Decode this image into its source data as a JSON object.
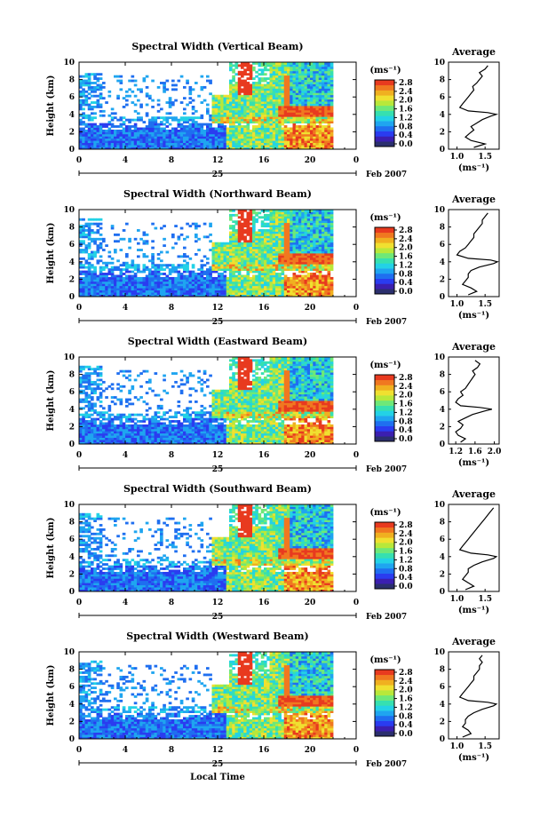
{
  "colors": {
    "colorbar": [
      "#2b2f6e",
      "#3b1fb0",
      "#2a3cf0",
      "#1f6ff0",
      "#1fa5f0",
      "#23d2e6",
      "#36e0b0",
      "#6ee878",
      "#b8e83a",
      "#f0e030",
      "#f0b020",
      "#f07820",
      "#e83a1f"
    ],
    "no_data": "#ffffff",
    "axis": "#000000"
  },
  "chart_data": [
    {
      "type": "heatmap",
      "title": "Spectral Width (Vertical Beam)",
      "ylabel": "Height (km)",
      "x_ticks": [
        "0",
        "4",
        "8",
        "12",
        "16",
        "20",
        "0"
      ],
      "xlim": [
        0,
        24
      ],
      "ylim": [
        0,
        10
      ],
      "y_ticks": [
        "0",
        "2",
        "4",
        "6",
        "8",
        "10"
      ],
      "date_label": "25",
      "month_label": "Feb 2007",
      "colorbar": {
        "unit": "(ms⁻¹)",
        "ticks": [
          "0.0",
          "0.4",
          "0.8",
          "1.2",
          "1.6",
          "2.0",
          "2.4",
          "2.8"
        ]
      },
      "average": {
        "title": "Average",
        "xlabel": "(ms⁻¹)",
        "x_ticks": [
          "1.0",
          "1.5"
        ],
        "xlim": [
          0.85,
          1.75
        ],
        "y_ticks": [
          "0",
          "2",
          "4",
          "6",
          "8",
          "10"
        ],
        "height_km": [
          0.2,
          0.6,
          1.0,
          1.4,
          1.8,
          2.2,
          2.6,
          3.0,
          3.4,
          3.8,
          4.0,
          4.2,
          4.4,
          4.8,
          5.2,
          5.6,
          6.0,
          6.4,
          6.8,
          7.2,
          7.6,
          8.0,
          8.4,
          8.8,
          9.2,
          9.6
        ],
        "values": [
          1.3,
          1.5,
          1.25,
          1.15,
          1.22,
          1.3,
          1.25,
          1.35,
          1.45,
          1.6,
          1.7,
          1.55,
          1.2,
          1.05,
          1.1,
          1.15,
          1.2,
          1.25,
          1.3,
          1.28,
          1.35,
          1.4,
          1.45,
          1.4,
          1.5,
          1.55
        ]
      }
    },
    {
      "type": "heatmap",
      "title": "Spectral Width (Northward Beam)",
      "ylabel": "Height (km)",
      "x_ticks": [
        "0",
        "4",
        "8",
        "12",
        "16",
        "20",
        "0"
      ],
      "xlim": [
        0,
        24
      ],
      "ylim": [
        0,
        10
      ],
      "y_ticks": [
        "0",
        "2",
        "4",
        "6",
        "8",
        "10"
      ],
      "date_label": "25",
      "month_label": "Feb 2007",
      "colorbar": {
        "unit": "(ms⁻¹)",
        "ticks": [
          "0.0",
          "0.4",
          "0.8",
          "1.2",
          "1.6",
          "2.0",
          "2.4",
          "2.8"
        ]
      },
      "average": {
        "title": "Average",
        "xlabel": "(ms⁻¹)",
        "x_ticks": [
          "1.0",
          "1.5"
        ],
        "xlim": [
          0.85,
          1.75
        ],
        "y_ticks": [
          "0",
          "2",
          "4",
          "6",
          "8",
          "10"
        ],
        "height_km": [
          0.2,
          0.6,
          1.0,
          1.4,
          1.8,
          2.2,
          2.6,
          3.0,
          3.4,
          3.8,
          4.0,
          4.2,
          4.4,
          4.8,
          5.2,
          5.6,
          6.0,
          6.4,
          6.8,
          7.2,
          7.6,
          8.0,
          8.4,
          8.8,
          9.2,
          9.6
        ],
        "values": [
          1.2,
          1.35,
          1.25,
          1.1,
          1.15,
          1.2,
          1.2,
          1.25,
          1.4,
          1.65,
          1.72,
          1.6,
          1.2,
          1.0,
          1.05,
          1.15,
          1.2,
          1.25,
          1.3,
          1.3,
          1.35,
          1.4,
          1.45,
          1.45,
          1.5,
          1.55
        ]
      }
    },
    {
      "type": "heatmap",
      "title": "Spectral Width (Eastward Beam)",
      "ylabel": "Height (km)",
      "x_ticks": [
        "0",
        "4",
        "8",
        "12",
        "16",
        "20",
        "0"
      ],
      "xlim": [
        0,
        24
      ],
      "ylim": [
        0,
        10
      ],
      "y_ticks": [
        "0",
        "2",
        "4",
        "6",
        "8",
        "10"
      ],
      "date_label": "25",
      "month_label": "Feb 2007",
      "colorbar": {
        "unit": "(ms⁻¹)",
        "ticks": [
          "0.0",
          "0.4",
          "0.8",
          "1.2",
          "1.6",
          "2.0",
          "2.4",
          "2.8"
        ]
      },
      "average": {
        "title": "Average",
        "xlabel": "(ms⁻¹)",
        "x_ticks": [
          "1.2",
          "1.6",
          "2.0"
        ],
        "xlim": [
          1.05,
          2.1
        ],
        "y_ticks": [
          "0",
          "2",
          "4",
          "6",
          "8",
          "10"
        ],
        "height_km": [
          0.2,
          0.6,
          1.0,
          1.4,
          1.8,
          2.2,
          2.6,
          3.0,
          3.4,
          3.8,
          4.0,
          4.2,
          4.4,
          4.8,
          5.2,
          5.6,
          6.0,
          6.4,
          6.8,
          7.2,
          7.6,
          8.0,
          8.4,
          8.8,
          9.2,
          9.6
        ],
        "values": [
          1.3,
          1.4,
          1.25,
          1.2,
          1.3,
          1.35,
          1.25,
          1.4,
          1.55,
          1.8,
          1.95,
          1.7,
          1.3,
          1.2,
          1.25,
          1.35,
          1.3,
          1.4,
          1.45,
          1.5,
          1.55,
          1.6,
          1.55,
          1.65,
          1.7,
          1.6
        ]
      }
    },
    {
      "type": "heatmap",
      "title": "Spectral Width (Southward Beam)",
      "ylabel": "Height (km)",
      "x_ticks": [
        "0",
        "4",
        "8",
        "12",
        "16",
        "20",
        "0"
      ],
      "xlim": [
        0,
        24
      ],
      "ylim": [
        0,
        10
      ],
      "y_ticks": [
        "0",
        "2",
        "4",
        "6",
        "8",
        "10"
      ],
      "date_label": "25",
      "month_label": "Feb 2007",
      "colorbar": {
        "unit": "(ms⁻¹)",
        "ticks": [
          "0.0",
          "0.4",
          "0.8",
          "1.2",
          "1.6",
          "2.0",
          "2.4",
          "2.8"
        ]
      },
      "average": {
        "title": "Average",
        "xlabel": "(ms⁻¹)",
        "x_ticks": [
          "1.0",
          "1.5"
        ],
        "xlim": [
          0.85,
          1.75
        ],
        "y_ticks": [
          "0",
          "2",
          "4",
          "6",
          "8",
          "10"
        ],
        "height_km": [
          0.2,
          0.6,
          1.0,
          1.4,
          1.8,
          2.2,
          2.6,
          3.0,
          3.4,
          3.8,
          4.0,
          4.2,
          4.4,
          4.8,
          5.2,
          5.6,
          6.0,
          6.4,
          6.8,
          7.2,
          7.6,
          8.0,
          8.4,
          8.8,
          9.2,
          9.6
        ],
        "values": [
          1.15,
          1.3,
          1.2,
          1.1,
          1.15,
          1.2,
          1.2,
          1.3,
          1.45,
          1.65,
          1.7,
          1.55,
          1.25,
          1.05,
          1.1,
          1.15,
          1.2,
          1.25,
          1.3,
          1.35,
          1.4,
          1.45,
          1.5,
          1.55,
          1.6,
          1.65
        ]
      }
    },
    {
      "type": "heatmap",
      "title": "Spectral Width (Westward Beam)",
      "ylabel": "Height (km)",
      "x_ticks": [
        "0",
        "4",
        "8",
        "12",
        "16",
        "20",
        "0"
      ],
      "xlim": [
        0,
        24
      ],
      "ylim": [
        0,
        10
      ],
      "y_ticks": [
        "0",
        "2",
        "4",
        "6",
        "8",
        "10"
      ],
      "date_label": "25",
      "month_label": "Feb 2007",
      "colorbar": {
        "unit": "(ms⁻¹)",
        "ticks": [
          "0.0",
          "0.4",
          "0.8",
          "1.2",
          "1.6",
          "2.0",
          "2.4",
          "2.8"
        ]
      },
      "average": {
        "title": "Average",
        "xlabel": "(ms⁻¹)",
        "x_ticks": [
          "1.0",
          "1.5"
        ],
        "xlim": [
          0.85,
          1.75
        ],
        "y_ticks": [
          "0",
          "2",
          "4",
          "6",
          "8",
          "10"
        ],
        "height_km": [
          0.2,
          0.6,
          1.0,
          1.4,
          1.8,
          2.2,
          2.6,
          3.0,
          3.4,
          3.8,
          4.0,
          4.2,
          4.4,
          4.8,
          5.2,
          5.6,
          6.0,
          6.4,
          6.8,
          7.2,
          7.6,
          8.0,
          8.4,
          8.8,
          9.2,
          9.6
        ],
        "values": [
          1.1,
          1.25,
          1.2,
          1.1,
          1.15,
          1.15,
          1.2,
          1.3,
          1.45,
          1.65,
          1.7,
          1.55,
          1.2,
          1.05,
          1.1,
          1.15,
          1.2,
          1.25,
          1.3,
          1.3,
          1.35,
          1.4,
          1.4,
          1.45,
          1.4,
          1.45
        ]
      }
    }
  ],
  "x_axis_label": "Local Time"
}
